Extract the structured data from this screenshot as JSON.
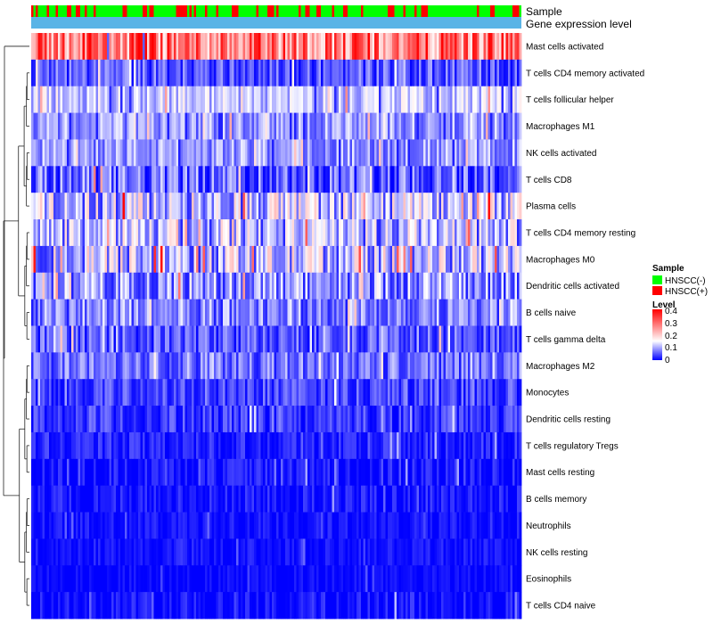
{
  "chart_data": {
    "type": "heatmap",
    "title": "",
    "annotations": {
      "sample_label": "Sample",
      "gene_label": "Gene expression level"
    },
    "rows": [
      {
        "name": "Mast cells activated",
        "level": 0.28,
        "spread": 0.12
      },
      {
        "name": "T cells CD4 memory activated",
        "level": 0.05,
        "spread": 0.05
      },
      {
        "name": "T cells follicular helper",
        "level": 0.12,
        "spread": 0.05
      },
      {
        "name": "Macrophages M1",
        "level": 0.09,
        "spread": 0.05
      },
      {
        "name": "NK cells activated",
        "level": 0.09,
        "spread": 0.05
      },
      {
        "name": "T cells CD8",
        "level": 0.06,
        "spread": 0.07
      },
      {
        "name": "Plasma cells",
        "level": 0.12,
        "spread": 0.09
      },
      {
        "name": "T cells CD4 memory resting",
        "level": 0.11,
        "spread": 0.08
      },
      {
        "name": "Macrophages M0",
        "level": 0.12,
        "spread": 0.09
      },
      {
        "name": "Dendritic cells activated",
        "level": 0.09,
        "spread": 0.07
      },
      {
        "name": "B cells naive",
        "level": 0.08,
        "spread": 0.06
      },
      {
        "name": "T cells gamma delta",
        "level": 0.05,
        "spread": 0.05
      },
      {
        "name": "Macrophages M2",
        "level": 0.07,
        "spread": 0.05
      },
      {
        "name": "Monocytes",
        "level": 0.04,
        "spread": 0.04
      },
      {
        "name": "Dendritic cells resting",
        "level": 0.03,
        "spread": 0.04
      },
      {
        "name": "T cells regulatory  Tregs",
        "level": 0.02,
        "spread": 0.03
      },
      {
        "name": "Mast cells resting",
        "level": 0.01,
        "spread": 0.03
      },
      {
        "name": "B cells memory",
        "level": 0.01,
        "spread": 0.03
      },
      {
        "name": "Neutrophils",
        "level": 0.01,
        "spread": 0.02
      },
      {
        "name": "NK cells resting",
        "level": 0.01,
        "spread": 0.02
      },
      {
        "name": "Eosinophils",
        "level": 0.005,
        "spread": 0.015
      },
      {
        "name": "T cells CD4 naive",
        "level": 0.01,
        "spread": 0.03
      }
    ],
    "n_samples": 220,
    "color_scale": {
      "min": 0,
      "max": 0.4,
      "low": "#0000ff",
      "mid": "#ffffff",
      "high": "#ff0000",
      "mid_value": 0.15
    },
    "sample_groups": {
      "HNSCC(-)": "#00ff00",
      "HNSCC(+)": "#ff0000"
    },
    "gene_band_color": "#5ab4e6",
    "legend": {
      "position": "right",
      "sample_title": "Sample",
      "sample_items": [
        "HNSCC(-)",
        "HNSCC(+)"
      ],
      "level_title": "Level",
      "level_ticks": [
        "0.4",
        "0.3",
        "0.2",
        "0.1",
        "0"
      ]
    }
  }
}
